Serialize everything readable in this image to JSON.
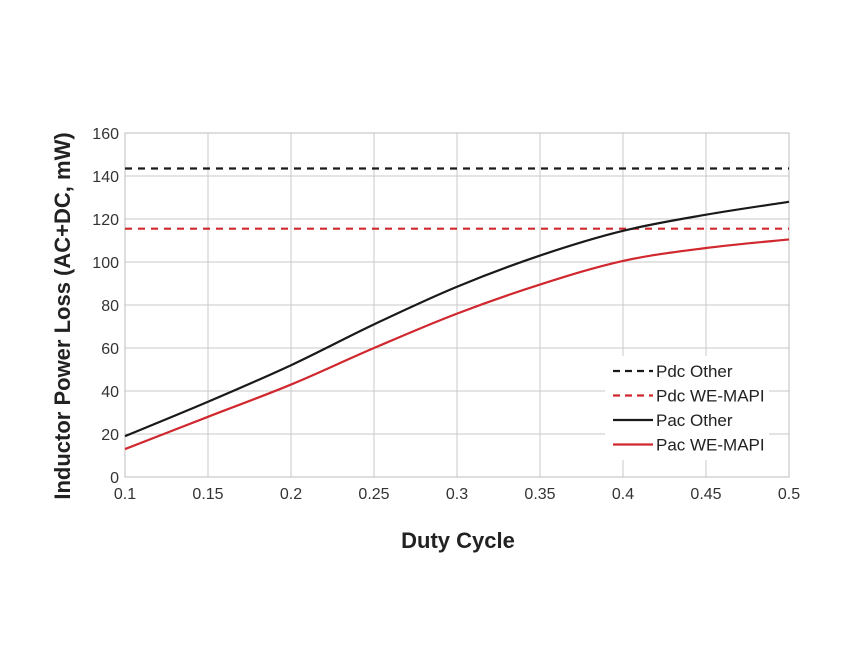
{
  "chart_data": {
    "type": "line",
    "title": "",
    "xlabel": "Duty Cycle",
    "ylabel": "Inductor Power Loss (AC+DC, mW)",
    "xlim": [
      0.1,
      0.5
    ],
    "ylim": [
      0,
      160
    ],
    "x_ticks": [
      "0.1",
      "0.15",
      "0.2",
      "0.25",
      "0.3",
      "0.35",
      "0.4",
      "0.45",
      "0.5"
    ],
    "y_ticks": [
      "0",
      "20",
      "40",
      "60",
      "80",
      "100",
      "120",
      "140",
      "160"
    ],
    "grid": true,
    "legend_position": "bottom-right",
    "series": [
      {
        "name": "Pdc Other",
        "color": "#1a1a1a",
        "dashed": true,
        "x": [
          0.1,
          0.5
        ],
        "y": [
          143.5,
          143.5
        ]
      },
      {
        "name": "Pdc WE-MAPI",
        "color": "#d0282e",
        "dashed": true,
        "x": [
          0.1,
          0.5
        ],
        "y": [
          115.5,
          115.5
        ]
      },
      {
        "name": "Pac Other",
        "color": "#1a1a1a",
        "dashed": false,
        "x": [
          0.1,
          0.15,
          0.2,
          0.25,
          0.3,
          0.35,
          0.4,
          0.45,
          0.5
        ],
        "y": [
          19,
          35,
          52,
          71,
          88.5,
          103,
          114.5,
          122,
          128
        ]
      },
      {
        "name": "Pac WE-MAPI",
        "color": "#d0282e",
        "dashed": false,
        "x": [
          0.1,
          0.15,
          0.2,
          0.25,
          0.3,
          0.35,
          0.4,
          0.45,
          0.5
        ],
        "y": [
          13,
          28,
          43,
          60,
          76,
          89.5,
          100.5,
          106.5,
          110.5
        ]
      }
    ]
  }
}
